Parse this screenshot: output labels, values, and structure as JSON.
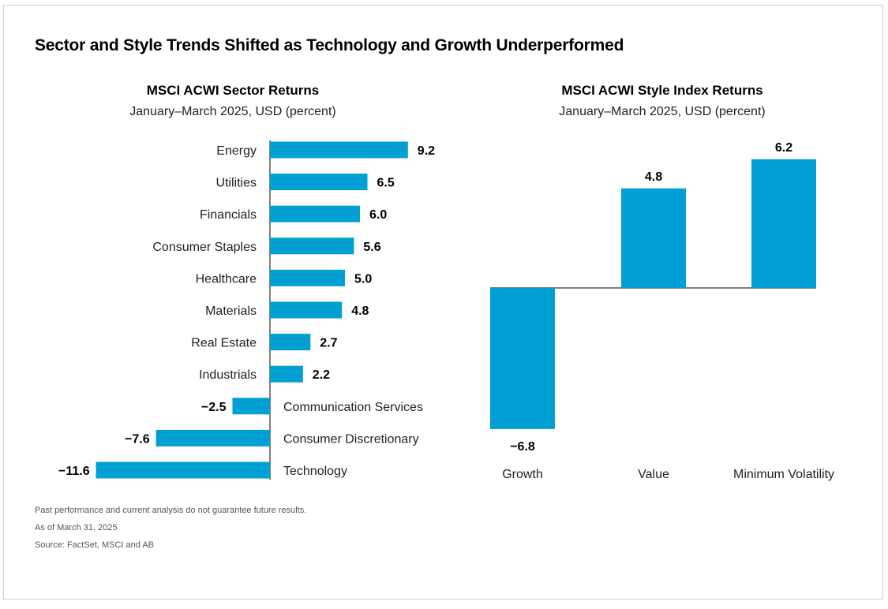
{
  "title": "Sector and Style Trends Shifted as Technology and Growth Underperformed",
  "colors": {
    "bar": "#009fd4",
    "axis": "#000000"
  },
  "chart_data": [
    {
      "type": "bar",
      "orientation": "horizontal",
      "title": "MSCI ACWI Sector Returns",
      "subtitle": "January–March 2025, USD (percent)",
      "categories": [
        "Energy",
        "Utilities",
        "Financials",
        "Consumer Staples",
        "Healthcare",
        "Materials",
        "Real Estate",
        "Industrials",
        "Communication Services",
        "Consumer Discretionary",
        "Technology"
      ],
      "values": [
        9.2,
        6.5,
        6.0,
        5.6,
        5.0,
        4.8,
        2.7,
        2.2,
        -2.5,
        -7.6,
        -11.6
      ],
      "value_labels": [
        "9.2",
        "6.5",
        "6.0",
        "5.6",
        "5.0",
        "4.8",
        "2.7",
        "2.2",
        "−2.5",
        "−7.6",
        "−11.6"
      ]
    },
    {
      "type": "bar",
      "orientation": "vertical",
      "title": "MSCI ACWI Style Index Returns",
      "subtitle": "January–March 2025, USD (percent)",
      "categories": [
        "Growth",
        "Value",
        "Minimum Volatility"
      ],
      "values": [
        -6.8,
        4.8,
        6.2
      ],
      "value_labels": [
        "−6.8",
        "4.8",
        "6.2"
      ]
    }
  ],
  "footnotes": [
    "Past performance and current analysis do not guarantee future results.",
    "As of March 31, 2025",
    "Source: FactSet, MSCI and AB"
  ]
}
